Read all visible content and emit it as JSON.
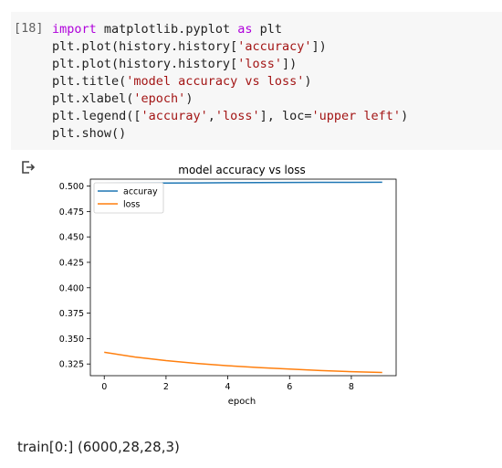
{
  "cell": {
    "prompt": "[18]",
    "lines": [
      [
        {
          "t": "import",
          "c": "kw"
        },
        {
          "t": " matplotlib.pyplot ",
          "c": ""
        },
        {
          "t": "as",
          "c": "kw"
        },
        {
          "t": " plt",
          "c": ""
        }
      ],
      [
        {
          "t": "plt.plot(history.history[",
          "c": ""
        },
        {
          "t": "'accuracy'",
          "c": "str"
        },
        {
          "t": "])",
          "c": ""
        }
      ],
      [
        {
          "t": "plt.plot(history.history[",
          "c": ""
        },
        {
          "t": "'loss'",
          "c": "str"
        },
        {
          "t": "])",
          "c": ""
        }
      ],
      [
        {
          "t": "plt.title(",
          "c": ""
        },
        {
          "t": "'model accuracy vs loss'",
          "c": "str"
        },
        {
          "t": ")",
          "c": ""
        }
      ],
      [
        {
          "t": "plt.xlabel(",
          "c": ""
        },
        {
          "t": "'epoch'",
          "c": "str"
        },
        {
          "t": ")",
          "c": ""
        }
      ],
      [
        {
          "t": "plt.legend([",
          "c": ""
        },
        {
          "t": "'accuray'",
          "c": "str"
        },
        {
          "t": ",",
          "c": ""
        },
        {
          "t": "'loss'",
          "c": "str"
        },
        {
          "t": "], loc=",
          "c": ""
        },
        {
          "t": "'upper left'",
          "c": "str"
        },
        {
          "t": ")",
          "c": ""
        }
      ],
      [
        {
          "t": "plt.show()",
          "c": ""
        }
      ]
    ]
  },
  "output_icon": "output-redirect-icon",
  "chart_data": {
    "type": "line",
    "title": "model accuracy vs loss",
    "xlabel": "epoch",
    "ylabel": "",
    "x": [
      0,
      1,
      2,
      3,
      4,
      5,
      6,
      7,
      8,
      9
    ],
    "series": [
      {
        "name": "accuray",
        "color": "#1f77b4",
        "values": [
          0.5025,
          0.5028,
          0.503,
          0.5031,
          0.5033,
          0.5034,
          0.5035,
          0.5036,
          0.5037,
          0.5038
        ]
      },
      {
        "name": "loss",
        "color": "#ff7f0e",
        "values": [
          0.3365,
          0.3318,
          0.3283,
          0.3255,
          0.3233,
          0.3215,
          0.32,
          0.3186,
          0.3174,
          0.3166
        ]
      }
    ],
    "xticks": [
      "0",
      "2",
      "4",
      "6",
      "8"
    ],
    "yticks": [
      "0.325",
      "0.350",
      "0.375",
      "0.400",
      "0.425",
      "0.450",
      "0.475",
      "0.500"
    ],
    "xlim": [
      -0.45,
      9.45
    ],
    "ylim": [
      0.3135,
      0.5068
    ],
    "legend_loc": "upper left",
    "grid": false
  },
  "footer": {
    "text": "train[0:] (6000,28,28,3)"
  }
}
